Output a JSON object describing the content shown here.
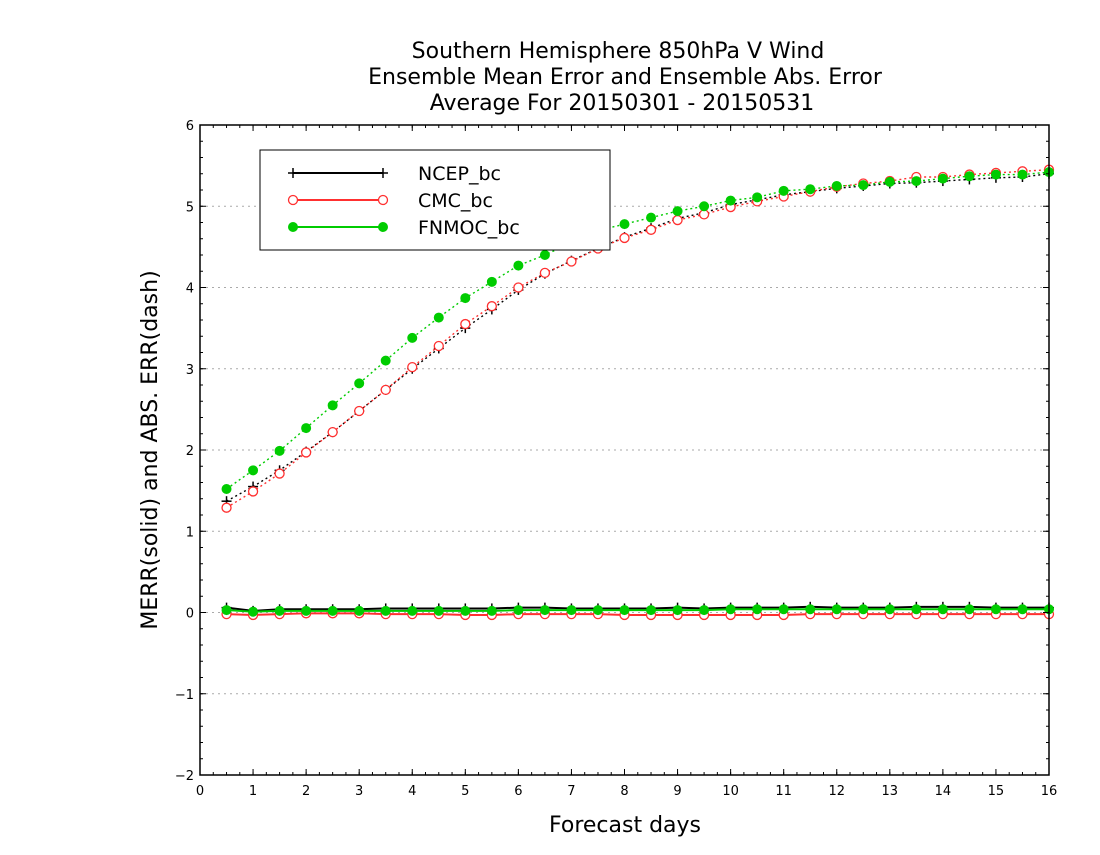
{
  "chart_data": {
    "type": "line",
    "title": [
      "Southern Hemisphere 850hPa V Wind",
      "Ensemble Mean Error and Ensemble Abs. Error",
      "Average For 20150301 - 20150531"
    ],
    "xlabel": "Forecast days",
    "ylabel": "MERR(solid) and ABS. ERR(dash)",
    "xlim": [
      0,
      16
    ],
    "ylim": [
      -2,
      6
    ],
    "x_ticks": [
      0,
      1,
      2,
      3,
      4,
      5,
      6,
      7,
      8,
      9,
      10,
      11,
      12,
      13,
      14,
      15,
      16
    ],
    "y_ticks": [
      -2,
      -1,
      0,
      1,
      2,
      3,
      4,
      5,
      6
    ],
    "grid": "horizontal dotted",
    "legend_position": "top-left",
    "x": [
      0.5,
      1,
      1.5,
      2,
      2.5,
      3,
      3.5,
      4,
      4.5,
      5,
      5.5,
      6,
      6.5,
      7,
      7.5,
      8,
      8.5,
      9,
      9.5,
      10,
      10.5,
      11,
      11.5,
      12,
      12.5,
      13,
      13.5,
      14,
      14.5,
      15,
      15.5,
      16
    ],
    "series": [
      {
        "name": "NCEP_bc",
        "color": "#000000",
        "marker": "plus",
        "merr": [
          0.06,
          0.02,
          0.04,
          0.04,
          0.04,
          0.04,
          0.05,
          0.05,
          0.05,
          0.05,
          0.05,
          0.06,
          0.06,
          0.05,
          0.05,
          0.05,
          0.05,
          0.06,
          0.05,
          0.06,
          0.06,
          0.06,
          0.07,
          0.06,
          0.06,
          0.06,
          0.07,
          0.07,
          0.07,
          0.06,
          0.06,
          0.06
        ],
        "abs_err": [
          1.37,
          1.55,
          1.75,
          1.98,
          2.22,
          2.48,
          2.74,
          3.0,
          3.25,
          3.5,
          3.73,
          3.97,
          4.17,
          4.33,
          4.48,
          4.62,
          4.73,
          4.85,
          4.92,
          5.02,
          5.08,
          5.14,
          5.18,
          5.22,
          5.25,
          5.28,
          5.29,
          5.31,
          5.33,
          5.35,
          5.36,
          5.4
        ]
      },
      {
        "name": "CMC_bc",
        "color": "#ff3030",
        "marker": "open-circle",
        "merr": [
          -0.02,
          -0.03,
          -0.02,
          -0.01,
          -0.01,
          -0.01,
          -0.02,
          -0.02,
          -0.02,
          -0.03,
          -0.03,
          -0.02,
          -0.02,
          -0.02,
          -0.02,
          -0.03,
          -0.03,
          -0.03,
          -0.03,
          -0.03,
          -0.03,
          -0.03,
          -0.02,
          -0.02,
          -0.02,
          -0.02,
          -0.02,
          -0.02,
          -0.02,
          -0.02,
          -0.02,
          -0.02
        ],
        "abs_err": [
          1.29,
          1.49,
          1.71,
          1.97,
          2.22,
          2.48,
          2.74,
          3.02,
          3.28,
          3.55,
          3.77,
          4.0,
          4.18,
          4.32,
          4.48,
          4.61,
          4.71,
          4.83,
          4.9,
          4.99,
          5.06,
          5.12,
          5.18,
          5.24,
          5.28,
          5.31,
          5.36,
          5.36,
          5.39,
          5.41,
          5.43,
          5.45
        ]
      },
      {
        "name": "FNMOC_bc",
        "color": "#00cc00",
        "marker": "filled-circle",
        "merr": [
          0.03,
          0.01,
          0.02,
          0.02,
          0.02,
          0.02,
          0.02,
          0.02,
          0.02,
          0.02,
          0.02,
          0.03,
          0.03,
          0.03,
          0.03,
          0.03,
          0.03,
          0.03,
          0.03,
          0.04,
          0.04,
          0.04,
          0.04,
          0.04,
          0.04,
          0.04,
          0.04,
          0.04,
          0.04,
          0.04,
          0.04,
          0.04
        ],
        "abs_err": [
          1.52,
          1.75,
          1.99,
          2.27,
          2.55,
          2.82,
          3.1,
          3.38,
          3.63,
          3.87,
          4.07,
          4.27,
          4.4,
          4.55,
          4.7,
          4.78,
          4.86,
          4.94,
          5.0,
          5.07,
          5.11,
          5.19,
          5.21,
          5.25,
          5.26,
          5.3,
          5.31,
          5.34,
          5.37,
          5.39,
          5.39,
          5.42
        ]
      }
    ]
  }
}
